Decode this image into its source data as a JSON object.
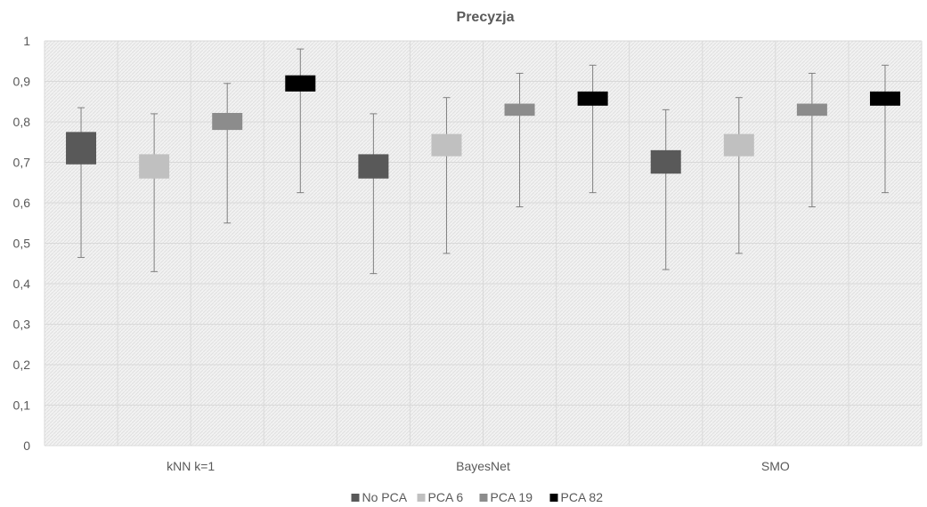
{
  "chart_data": {
    "type": "bar",
    "subtype": "box-with-error-bars",
    "title": "Precyzja",
    "categories": [
      "kNN k=1",
      "BayesNet",
      "SMO"
    ],
    "ylim": [
      0,
      1
    ],
    "yticks": [
      "0",
      "0,1",
      "0,2",
      "0,3",
      "0,4",
      "0,5",
      "0,6",
      "0,7",
      "0,8",
      "0,9",
      "1"
    ],
    "grid": true,
    "legend_position": "bottom",
    "series": [
      {
        "name": "No PCA",
        "color": "#595959",
        "box_low": [
          0.695,
          0.66,
          0.672
        ],
        "box_high": [
          0.775,
          0.72,
          0.73
        ],
        "whisker_low": [
          0.465,
          0.425,
          0.435
        ],
        "whisker_high": [
          0.835,
          0.82,
          0.83
        ]
      },
      {
        "name": "PCA 6",
        "color": "#c0c0c0",
        "box_low": [
          0.66,
          0.715,
          0.715
        ],
        "box_high": [
          0.72,
          0.77,
          0.77
        ],
        "whisker_low": [
          0.43,
          0.475,
          0.475
        ],
        "whisker_high": [
          0.82,
          0.86,
          0.86
        ]
      },
      {
        "name": "PCA 19",
        "color": "#8c8c8c",
        "box_low": [
          0.78,
          0.815,
          0.815
        ],
        "box_high": [
          0.822,
          0.845,
          0.845
        ],
        "whisker_low": [
          0.55,
          0.59,
          0.59
        ],
        "whisker_high": [
          0.895,
          0.92,
          0.92
        ]
      },
      {
        "name": "PCA 82",
        "color": "#000000",
        "box_low": [
          0.875,
          0.84,
          0.84
        ],
        "box_high": [
          0.915,
          0.875,
          0.875
        ],
        "whisker_low": [
          0.625,
          0.625,
          0.625
        ],
        "whisker_high": [
          0.98,
          0.94,
          0.94
        ]
      }
    ]
  }
}
